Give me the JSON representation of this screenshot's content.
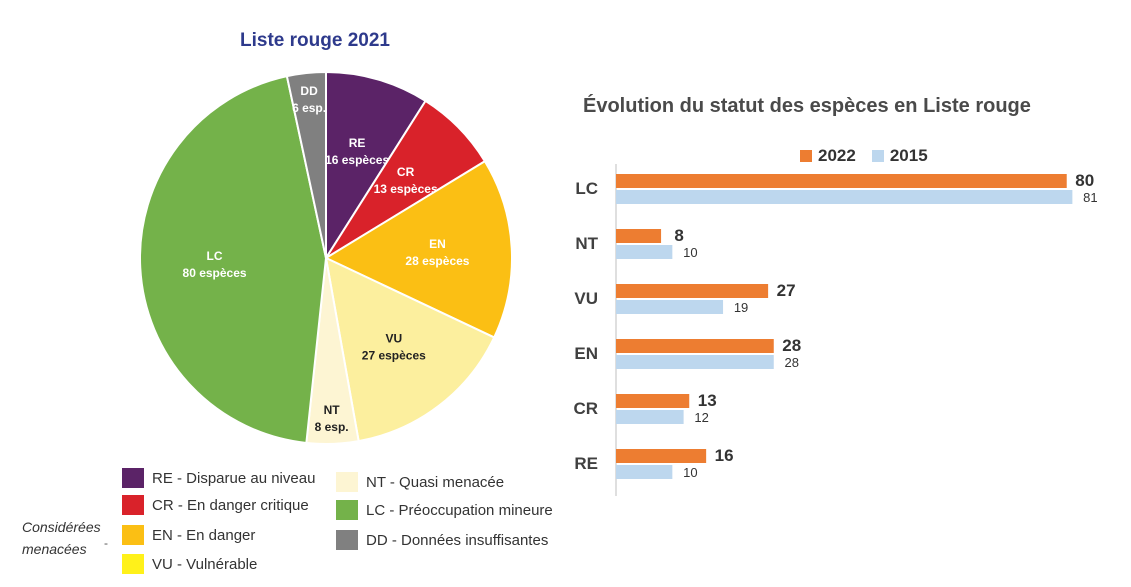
{
  "chart_data": [
    {
      "type": "pie",
      "title": "Liste rouge 2021",
      "slices": [
        {
          "code": "RE",
          "count_label": "16 espèces",
          "value": 16,
          "color": "#5b2367"
        },
        {
          "code": "CR",
          "count_label": "13 espèces",
          "value": 13,
          "color": "#d9222a"
        },
        {
          "code": "EN",
          "count_label": "28 espèces",
          "value": 28,
          "color": "#fbbf14"
        },
        {
          "code": "VU",
          "count_label": "27 espèces",
          "value": 27,
          "color": "#fcef9e"
        },
        {
          "code": "NT",
          "count_label": "8 esp.",
          "value": 8,
          "color": "#fdf5d3"
        },
        {
          "code": "LC",
          "count_label": "80 espèces",
          "value": 80,
          "color": "#74b24a"
        },
        {
          "code": "DD",
          "count_label": "6 esp.",
          "value": 6,
          "color": "#808080"
        }
      ],
      "legend": [
        {
          "label": "RE - Disparue au niveau",
          "color": "#5b2367"
        },
        {
          "label": "CR - En danger critique",
          "color": "#d9222a"
        },
        {
          "label": "EN - En danger",
          "color": "#fbbf14"
        },
        {
          "label": "VU - Vulnérable",
          "color": "#fff11a"
        },
        {
          "label": "NT - Quasi menacée",
          "color": "#fdf5d3"
        },
        {
          "label": "LC - Préoccupation mineure",
          "color": "#74b24a"
        },
        {
          "label": "DD - Données insuffisantes",
          "color": "#808080"
        }
      ],
      "note": "Considérées menacées"
    },
    {
      "type": "bar",
      "orientation": "horizontal",
      "title": "Évolution du statut des espèces en Liste rouge",
      "categories": [
        "LC",
        "NT",
        "VU",
        "EN",
        "CR",
        "RE"
      ],
      "series": [
        {
          "name": "2022",
          "color": "#ed7d31",
          "values": [
            80,
            8,
            27,
            28,
            13,
            16
          ]
        },
        {
          "name": "2015",
          "color": "#bdd7ee",
          "values": [
            81,
            10,
            19,
            28,
            12,
            10
          ]
        }
      ],
      "xlim": [
        0,
        82
      ],
      "legend_position": "top"
    }
  ]
}
